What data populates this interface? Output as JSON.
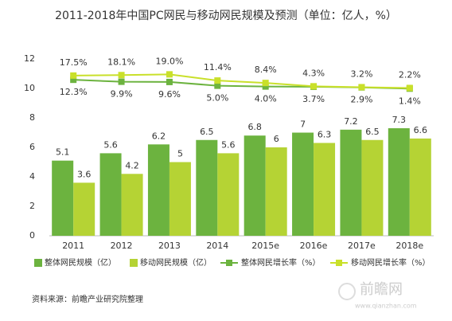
{
  "chart_data": {
    "type": "bar",
    "title": "2011-2018年中国PC网民与移动网民规模及预测（单位：亿人，%）",
    "categories": [
      "2011",
      "2012",
      "2013",
      "2014",
      "2015e",
      "2016e",
      "2017e",
      "2018e"
    ],
    "series": [
      {
        "name": "整体网民规模（亿）",
        "type": "bar",
        "color": "#6cb33f",
        "values": [
          5.1,
          5.6,
          6.2,
          6.5,
          6.8,
          7.0,
          7.2,
          7.3
        ]
      },
      {
        "name": "移动网民规模（亿）",
        "type": "bar",
        "color": "#b5d334",
        "values": [
          3.6,
          4.2,
          5.0,
          5.6,
          6.0,
          6.3,
          6.5,
          6.6
        ]
      },
      {
        "name": "整体网民增长率（%）",
        "type": "line",
        "axis": "y2",
        "color": "#6cb33f",
        "values": [
          12.3,
          9.9,
          9.6,
          5.0,
          4.0,
          3.7,
          2.9,
          1.4
        ],
        "value_labels": [
          "12.3%",
          "9.9%",
          "9.6%",
          "5.0%",
          "4.0%",
          "3.7%",
          "2.9%",
          "1.4%"
        ]
      },
      {
        "name": "移动网民增长率（%）",
        "type": "line",
        "axis": "y2",
        "color": "#c9e02a",
        "values": [
          17.5,
          18.1,
          19.0,
          11.4,
          8.4,
          4.3,
          3.2,
          2.2
        ],
        "value_labels": [
          "17.5%",
          "18.1%",
          "19.0%",
          "11.4%",
          "8.4%",
          "4.3%",
          "3.2%",
          "2.2%"
        ]
      }
    ],
    "ylim": [
      0,
      12
    ],
    "yticks": [
      0,
      2,
      4,
      6,
      8,
      10,
      12
    ],
    "y2lim": [
      -180,
      38
    ],
    "grid": false,
    "source": "资料来源：前瞻产业研究院整理",
    "watermark": "前瞻网",
    "watermark_url": "www.qianzhan.com"
  }
}
